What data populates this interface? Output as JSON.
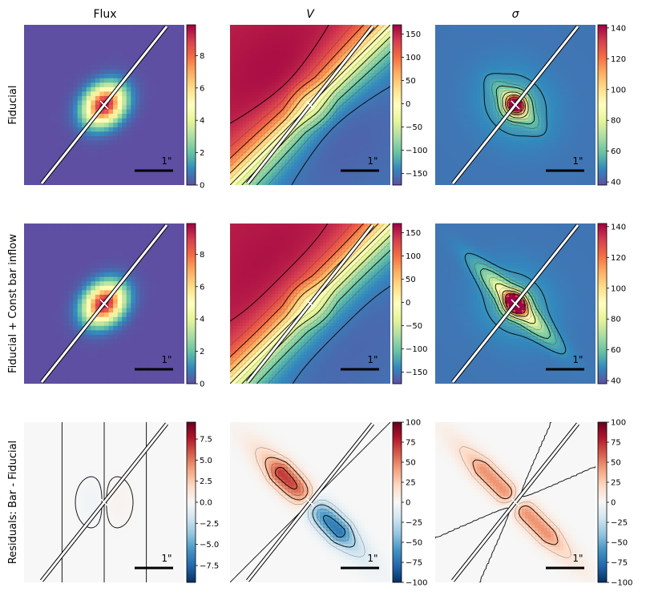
{
  "chart_data": {
    "type": "heatmap",
    "title": "",
    "column_titles": [
      {
        "text": "Flux",
        "italic": false
      },
      {
        "text": "V",
        "italic": true
      },
      {
        "text": "σ",
        "italic": true
      }
    ],
    "row_labels": [
      "Fiducial",
      "Fiducial + Const bar inflow",
      "Residuals: Bar - Fiducial"
    ],
    "scale_bar_label": "1\"",
    "slit_angle_deg": 45,
    "colormaps": {
      "Spectral_r": [
        "#5e4fa2",
        "#3288bd",
        "#66c2a5",
        "#abdda4",
        "#e6f598",
        "#ffffbf",
        "#fee08b",
        "#fdae61",
        "#f46d43",
        "#d53e4f",
        "#9e0142"
      ],
      "RdBu_r": [
        "#053061",
        "#2166ac",
        "#4393c3",
        "#92c5de",
        "#d1e5f0",
        "#f7f7f7",
        "#fddbc7",
        "#f4a582",
        "#d6604d",
        "#b2182b",
        "#67001f"
      ]
    },
    "panels": [
      {
        "row": 0,
        "col": 0,
        "quantity": "flux",
        "cmap": "Spectral_r",
        "vmin": 0,
        "vmax": 9.9,
        "ticks": [
          0,
          2,
          4,
          6,
          8
        ],
        "tick_labels": [
          "0",
          "2",
          "4",
          "6",
          "8"
        ],
        "contours": false
      },
      {
        "row": 0,
        "col": 1,
        "quantity": "velocity",
        "cmap": "Spectral_r",
        "vmin": -175,
        "vmax": 170,
        "ticks": [
          -150,
          -100,
          -50,
          0,
          50,
          100,
          150
        ],
        "tick_labels": [
          "−150",
          "−100",
          "−50",
          "0",
          "50",
          "100",
          "150"
        ],
        "contours": true
      },
      {
        "row": 0,
        "col": 2,
        "quantity": "sigma",
        "cmap": "Spectral_r",
        "vmin": 38,
        "vmax": 142,
        "ticks": [
          40,
          60,
          80,
          100,
          120,
          140
        ],
        "tick_labels": [
          "40",
          "60",
          "80",
          "100",
          "120",
          "140"
        ],
        "contours": true
      },
      {
        "row": 1,
        "col": 0,
        "quantity": "flux",
        "cmap": "Spectral_r",
        "vmin": 0,
        "vmax": 9.9,
        "ticks": [
          0,
          2,
          4,
          6,
          8
        ],
        "tick_labels": [
          "0",
          "2",
          "4",
          "6",
          "8"
        ],
        "contours": false
      },
      {
        "row": 1,
        "col": 1,
        "quantity": "velocity",
        "cmap": "Spectral_r",
        "vmin": -175,
        "vmax": 170,
        "ticks": [
          -150,
          -100,
          -50,
          0,
          50,
          100,
          150
        ],
        "tick_labels": [
          "−150",
          "−100",
          "−50",
          "0",
          "50",
          "100",
          "150"
        ],
        "contours": true
      },
      {
        "row": 1,
        "col": 2,
        "quantity": "sigma",
        "cmap": "Spectral_r",
        "vmin": 38,
        "vmax": 142,
        "ticks": [
          40,
          60,
          80,
          100,
          120,
          140
        ],
        "tick_labels": [
          "40",
          "60",
          "80",
          "100",
          "120",
          "140"
        ],
        "contours": true
      },
      {
        "row": 2,
        "col": 0,
        "quantity": "flux_residual",
        "cmap": "RdBu_r",
        "vmin": -9.5,
        "vmax": 9.5,
        "ticks": [
          -7.5,
          -5,
          -2.5,
          0,
          2.5,
          5,
          7.5
        ],
        "tick_labels": [
          "−7.5",
          "−5.0",
          "−2.5",
          "0.0",
          "2.5",
          "5.0",
          "7.5"
        ],
        "contours": true
      },
      {
        "row": 2,
        "col": 1,
        "quantity": "velocity_residual",
        "cmap": "RdBu_r",
        "vmin": -100,
        "vmax": 100,
        "ticks": [
          -100,
          -75,
          -50,
          -25,
          0,
          25,
          50,
          75,
          100
        ],
        "tick_labels": [
          "−100",
          "−75",
          "−50",
          "−25",
          "0",
          "25",
          "50",
          "75",
          "100"
        ],
        "contours": true
      },
      {
        "row": 2,
        "col": 2,
        "quantity": "sigma_residual",
        "cmap": "RdBu_r",
        "vmin": -100,
        "vmax": 100,
        "ticks": [
          -100,
          -75,
          -50,
          -25,
          0,
          25,
          50,
          75,
          100
        ],
        "tick_labels": [
          "−100",
          "−75",
          "−50",
          "−25",
          "0",
          "25",
          "50",
          "75",
          "100"
        ],
        "contours": true
      }
    ]
  }
}
